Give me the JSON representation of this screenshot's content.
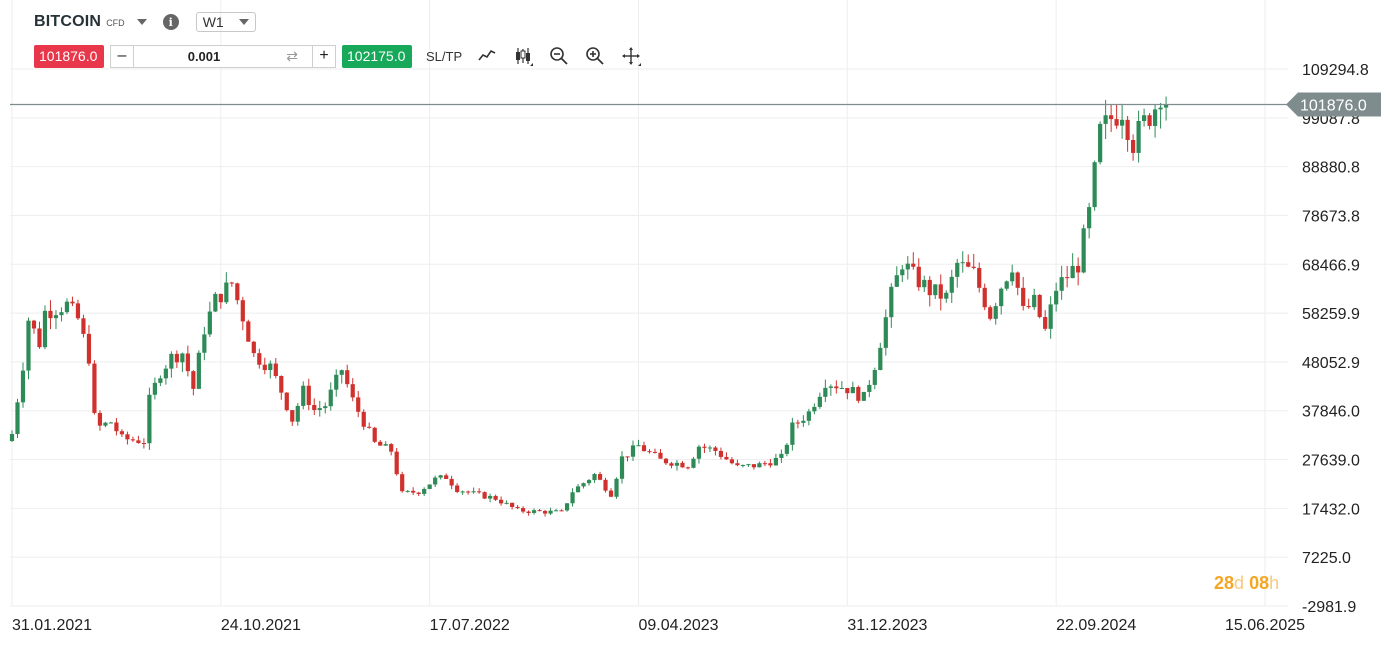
{
  "header": {
    "symbol": "BITCOIN",
    "instrument_type": "CFD",
    "info_icon": "i",
    "timeframe": "W1"
  },
  "trade_bar": {
    "sell_price": "101876.0",
    "minus_label": "–",
    "quantity": "0.001",
    "plus_label": "+",
    "buy_price": "102175.0",
    "sltp_label": "SL/TP",
    "tools": [
      "line-chart-icon",
      "candlestick-icon",
      "zoom-out-icon",
      "zoom-in-icon",
      "crosshair-move-icon"
    ]
  },
  "countdown": {
    "days": "28",
    "days_unit": "d",
    "hours": "08",
    "hours_unit": "h"
  },
  "colors": {
    "up": "#2e8b57",
    "down": "#d0312d",
    "sell": "#e8364a",
    "buy": "#17a85a",
    "countdown": "#f5a623"
  },
  "chart_data": {
    "type": "candlestick",
    "y_axis_labels": [
      "109294.8",
      "99087.8",
      "88880.8",
      "78673.8",
      "68466.9",
      "58259.9",
      "48052.9",
      "37846.0",
      "27639.0",
      "17432.0",
      "7225.0",
      "-2981.9"
    ],
    "ylim": [
      -2981.9,
      109294.8
    ],
    "x_axis_labels": [
      "31.01.2021",
      "24.10.2021",
      "17.07.2022",
      "09.04.2023",
      "31.12.2023",
      "22.09.2024",
      "15.06.2025"
    ],
    "current_price": 101876.0,
    "current_price_label": "101876.0",
    "weekly_close_path": [
      [
        "2021-01-31",
        33000
      ],
      [
        "2021-02-14",
        47500
      ],
      [
        "2021-02-21",
        57000
      ],
      [
        "2021-03-07",
        52000
      ],
      [
        "2021-03-14",
        58500
      ],
      [
        "2021-04-11",
        60000
      ],
      [
        "2021-04-25",
        57000
      ],
      [
        "2021-05-09",
        49000
      ],
      [
        "2021-05-16",
        36500
      ],
      [
        "2021-05-23",
        34500
      ],
      [
        "2021-06-06",
        35500
      ],
      [
        "2021-06-20",
        32000
      ],
      [
        "2021-07-18",
        31500
      ],
      [
        "2021-07-25",
        40000
      ],
      [
        "2021-08-08",
        46000
      ],
      [
        "2021-08-22",
        49000
      ],
      [
        "2021-09-05",
        50000
      ],
      [
        "2021-09-19",
        42500
      ],
      [
        "2021-10-03",
        55000
      ],
      [
        "2021-10-17",
        61000
      ],
      [
        "2021-11-07",
        64500
      ],
      [
        "2021-11-21",
        57500
      ],
      [
        "2021-12-05",
        49500
      ],
      [
        "2021-12-26",
        47000
      ],
      [
        "2022-01-09",
        42000
      ],
      [
        "2022-01-23",
        36000
      ],
      [
        "2022-02-06",
        42000
      ],
      [
        "2022-02-20",
        38000
      ],
      [
        "2022-03-06",
        39000
      ],
      [
        "2022-03-27",
        46500
      ],
      [
        "2022-04-10",
        40000
      ],
      [
        "2022-05-08",
        31000
      ],
      [
        "2022-05-29",
        29500
      ],
      [
        "2022-06-12",
        20500
      ],
      [
        "2022-07-03",
        21000
      ],
      [
        "2022-07-24",
        23500
      ],
      [
        "2022-08-07",
        24000
      ],
      [
        "2022-08-21",
        21500
      ],
      [
        "2022-09-11",
        20500
      ],
      [
        "2022-10-09",
        19500
      ],
      [
        "2022-11-06",
        17000
      ],
      [
        "2022-11-27",
        16800
      ],
      [
        "2023-01-01",
        16600
      ],
      [
        "2023-01-15",
        21000
      ],
      [
        "2023-02-12",
        24500
      ],
      [
        "2023-03-05",
        20500
      ],
      [
        "2023-03-19",
        28000
      ],
      [
        "2023-04-09",
        30500
      ],
      [
        "2023-05-07",
        27500
      ],
      [
        "2023-06-11",
        26500
      ],
      [
        "2023-06-25",
        30500
      ],
      [
        "2023-07-16",
        29500
      ],
      [
        "2023-08-13",
        26000
      ],
      [
        "2023-09-10",
        26500
      ],
      [
        "2023-10-08",
        28000
      ],
      [
        "2023-10-22",
        34500
      ],
      [
        "2023-11-12",
        37500
      ],
      [
        "2023-12-03",
        44000
      ],
      [
        "2023-12-31",
        42500
      ],
      [
        "2024-01-21",
        40500
      ],
      [
        "2024-02-04",
        47500
      ],
      [
        "2024-02-25",
        62000
      ],
      [
        "2024-03-10",
        69000
      ],
      [
        "2024-03-24",
        66000
      ],
      [
        "2024-04-14",
        63000
      ],
      [
        "2024-05-05",
        61500
      ],
      [
        "2024-05-19",
        68500
      ],
      [
        "2024-06-09",
        66500
      ],
      [
        "2024-06-30",
        58000
      ],
      [
        "2024-07-14",
        64000
      ],
      [
        "2024-07-28",
        68500
      ],
      [
        "2024-08-11",
        58500
      ],
      [
        "2024-08-25",
        60500
      ],
      [
        "2024-09-08",
        54500
      ],
      [
        "2024-09-22",
        63500
      ],
      [
        "2024-10-06",
        66000
      ],
      [
        "2024-10-20",
        68500
      ],
      [
        "2024-11-03",
        79000
      ],
      [
        "2024-11-17",
        96000
      ],
      [
        "2024-12-01",
        99000
      ],
      [
        "2024-12-15",
        101000
      ],
      [
        "2024-12-29",
        94000
      ],
      [
        "2025-01-12",
        98000
      ],
      [
        "2025-01-26",
        101500
      ],
      [
        "2025-02-02",
        104500
      ],
      [
        "2025-02-09",
        101876
      ]
    ]
  }
}
